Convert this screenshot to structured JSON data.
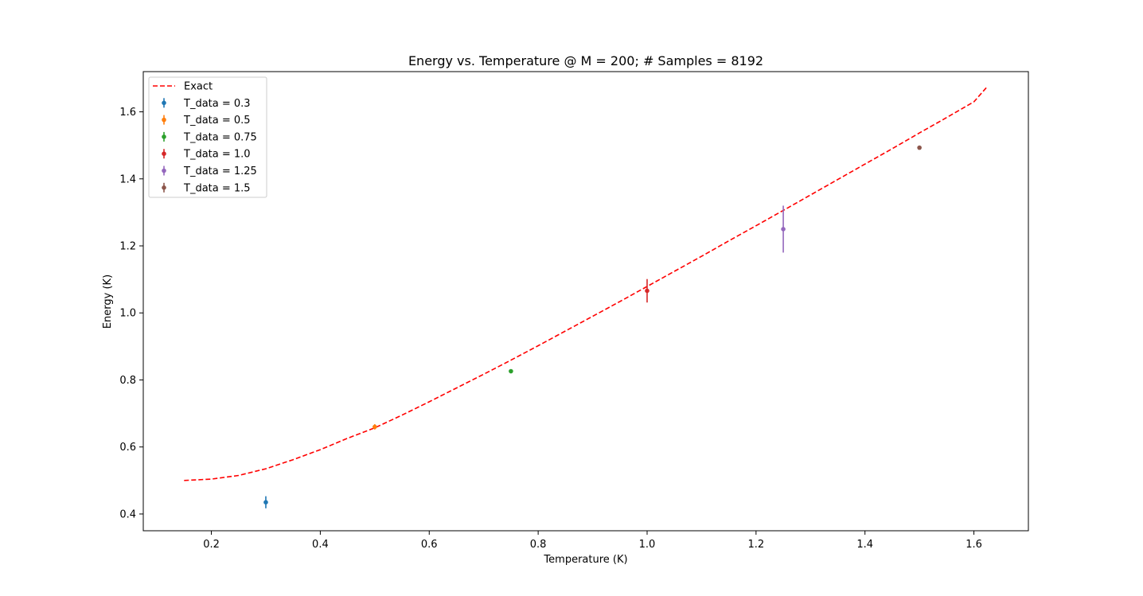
{
  "chart_data": {
    "type": "scatter",
    "title": "Energy vs. Temperature @ M = 200; # Samples = 8192",
    "xlabel": "Temperature (K)",
    "ylabel": "Energy (K)",
    "xlim": [
      0.075,
      1.7
    ],
    "ylim": [
      0.35,
      1.72
    ],
    "x_ticks": [
      0.2,
      0.4,
      0.6,
      0.8,
      1.0,
      1.2,
      1.4,
      1.6
    ],
    "x_tick_labels": [
      "0.2",
      "0.4",
      "0.6",
      "0.8",
      "1.0",
      "1.2",
      "1.4",
      "1.6"
    ],
    "y_ticks": [
      0.4,
      0.6,
      0.8,
      1.0,
      1.2,
      1.4,
      1.6
    ],
    "y_tick_labels": [
      "0.4",
      "0.6",
      "0.8",
      "1.0",
      "1.2",
      "1.4",
      "1.6"
    ],
    "grid": false,
    "legend_position": "top-left",
    "exact_curve": {
      "name": "Exact",
      "style": "dashed",
      "color": "#ff0000",
      "x_range": [
        0.15,
        1.625
      ],
      "points": [
        [
          0.15,
          0.5
        ],
        [
          0.2,
          0.504
        ],
        [
          0.25,
          0.515
        ],
        [
          0.3,
          0.535
        ],
        [
          0.35,
          0.562
        ],
        [
          0.4,
          0.592
        ],
        [
          0.45,
          0.626
        ],
        [
          0.5,
          0.657
        ],
        [
          0.55,
          0.695
        ],
        [
          0.6,
          0.735
        ],
        [
          0.65,
          0.776
        ],
        [
          0.7,
          0.817
        ],
        [
          0.75,
          0.859
        ],
        [
          0.8,
          0.902
        ],
        [
          0.85,
          0.946
        ],
        [
          0.9,
          0.99
        ],
        [
          0.95,
          1.034
        ],
        [
          1.0,
          1.079
        ],
        [
          1.05,
          1.124
        ],
        [
          1.1,
          1.169
        ],
        [
          1.15,
          1.215
        ],
        [
          1.2,
          1.26
        ],
        [
          1.25,
          1.306
        ],
        [
          1.3,
          1.352
        ],
        [
          1.35,
          1.398
        ],
        [
          1.4,
          1.444
        ],
        [
          1.45,
          1.49
        ],
        [
          1.5,
          1.537
        ],
        [
          1.55,
          1.583
        ],
        [
          1.6,
          1.63
        ],
        [
          1.625,
          1.676
        ]
      ]
    },
    "series": [
      {
        "name": "T_data = 0.3",
        "color": "#1f77b4",
        "x": 0.3,
        "y": 0.435,
        "yerr": 0.018
      },
      {
        "name": "T_data = 0.5",
        "color": "#ff7f0e",
        "x": 0.5,
        "y": 0.66,
        "yerr": 0.008
      },
      {
        "name": "T_data = 0.75",
        "color": "#2ca02c",
        "x": 0.75,
        "y": 0.826,
        "yerr": 0.0
      },
      {
        "name": "T_data = 1.0",
        "color": "#d62728",
        "x": 1.0,
        "y": 1.066,
        "yerr": 0.035
      },
      {
        "name": "T_data = 1.25",
        "color": "#9467bd",
        "x": 1.25,
        "y": 1.25,
        "yerr": 0.07
      },
      {
        "name": "T_data = 1.5",
        "color": "#8c564b",
        "x": 1.5,
        "y": 1.493,
        "yerr": 0.0
      }
    ]
  }
}
